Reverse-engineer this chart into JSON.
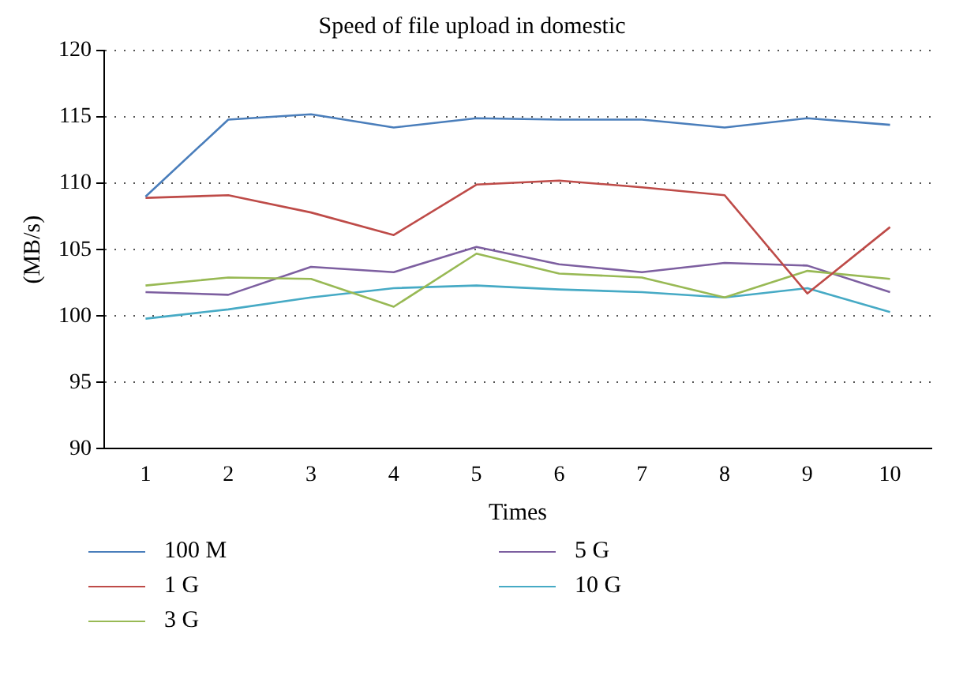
{
  "chart_data": {
    "type": "line",
    "title": "Speed of file upload in domestic",
    "xlabel": "Times",
    "ylabel": "(MB/s)",
    "categories": [
      "1",
      "2",
      "3",
      "4",
      "5",
      "6",
      "7",
      "8",
      "9",
      "10"
    ],
    "series": [
      {
        "name": "100 M",
        "color": "#4a7ebb",
        "values": [
          109.0,
          114.8,
          115.2,
          114.2,
          114.9,
          114.8,
          114.8,
          114.2,
          114.9,
          114.4
        ]
      },
      {
        "name": "1 G",
        "color": "#be4b48",
        "values": [
          108.9,
          109.1,
          107.8,
          106.1,
          109.9,
          110.2,
          109.7,
          109.1,
          101.7,
          106.7
        ]
      },
      {
        "name": "3 G",
        "color": "#98b954",
        "values": [
          102.3,
          102.9,
          102.8,
          100.7,
          104.7,
          103.2,
          102.9,
          101.4,
          103.4,
          102.8
        ]
      },
      {
        "name": "5 G",
        "color": "#7d5fa0",
        "values": [
          101.8,
          101.6,
          103.7,
          103.3,
          105.2,
          103.9,
          103.3,
          104.0,
          103.8,
          101.8
        ]
      },
      {
        "name": "10 G",
        "color": "#46aac5",
        "values": [
          99.8,
          100.5,
          101.4,
          102.1,
          102.3,
          102.0,
          101.8,
          101.4,
          102.1,
          100.3
        ]
      }
    ],
    "ylim": [
      90,
      120
    ],
    "yticks": [
      90,
      95,
      100,
      105,
      110,
      115,
      120
    ],
    "grid": "y",
    "legend": "bottom",
    "marker": "none",
    "line_style": "solid"
  }
}
